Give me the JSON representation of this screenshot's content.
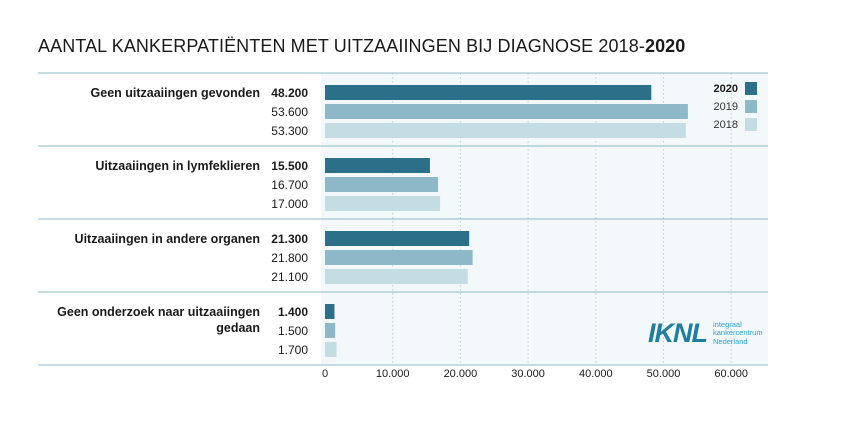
{
  "title": {
    "main": "AANTAL KANKERPATIËNTEN MET UITZAAIINGEN BIJ DIAGNOSE",
    "years_regular": "2018-",
    "years_bold": "2020"
  },
  "chart_data": {
    "type": "bar",
    "orientation": "horizontal",
    "categories": [
      "Geen uitzaaiingen gevonden",
      "Uitzaaiingen in lymfeklieren",
      "Uitzaaiingen in andere organen",
      "Geen onderzoek naar uitzaaiingen gedaan"
    ],
    "category_lines": [
      [
        "Geen uitzaaiingen gevonden"
      ],
      [
        "Uitzaaiingen in lymfeklieren"
      ],
      [
        "Uitzaaiingen in andere organen"
      ],
      [
        "Geen onderzoek naar uitzaaiingen",
        "gedaan"
      ]
    ],
    "series": [
      {
        "name": "2020",
        "values": [
          48200,
          15500,
          21300,
          1400
        ],
        "color": "#2b6f89",
        "bold": true
      },
      {
        "name": "2019",
        "values": [
          53600,
          16700,
          21800,
          1500
        ],
        "color": "#8cb8c8",
        "bold": false
      },
      {
        "name": "2018",
        "values": [
          53300,
          17000,
          21100,
          1700
        ],
        "color": "#c4dde5",
        "bold": false
      }
    ],
    "value_labels": [
      [
        "48.200",
        "53.600",
        "53.300"
      ],
      [
        "15.500",
        "16.700",
        "17.000"
      ],
      [
        "21.300",
        "21.800",
        "21.100"
      ],
      [
        "1.400",
        "1.500",
        "1.700"
      ]
    ],
    "xlim": [
      0,
      60000
    ],
    "xticks": [
      0,
      10000,
      20000,
      30000,
      40000,
      50000,
      60000
    ],
    "xtick_labels": [
      "0",
      "10.000",
      "20.000",
      "30.000",
      "40.000",
      "50.000",
      "60.000"
    ],
    "grid": true,
    "legend_position": "top-right"
  },
  "logo": {
    "mark": "IKNL",
    "text": "integraal\nkankercentrum\nNederland"
  },
  "colors": {
    "panel_bg": "#f3f8fb",
    "separator": "#8cb8c8",
    "grid": "#b9d2dc"
  }
}
